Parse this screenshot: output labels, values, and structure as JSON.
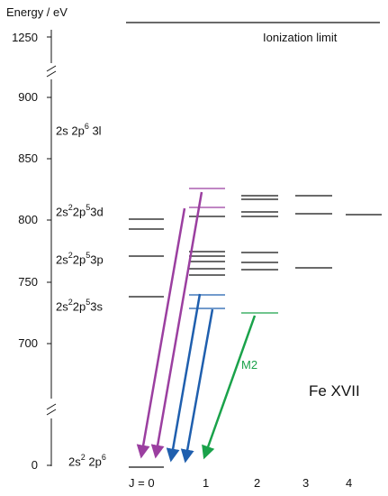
{
  "axis": {
    "title": "Energy / eV",
    "ticks": [
      "1250",
      "900",
      "850",
      "800",
      "750",
      "700",
      "0"
    ]
  },
  "ionization_label": "Ionization limit",
  "ion_label": "Fe XVII",
  "transition_label": "M2",
  "j_axis": {
    "prefix": "J = 0",
    "values": [
      "1",
      "2",
      "3",
      "4"
    ]
  },
  "configurations": [
    {
      "base": "2s 2p",
      "sup1": "6",
      "rest": " 3l"
    },
    {
      "base": "2s",
      "sup1": "2",
      "mid": "2p",
      "sup2": "5",
      "rest": "3d"
    },
    {
      "base": "2s",
      "sup1": "2",
      "mid": "2p",
      "sup2": "5",
      "rest": "3p"
    },
    {
      "base": "2s",
      "sup1": "2",
      "mid": "2p",
      "sup2": "5",
      "rest": "3s"
    },
    {
      "base": "2s",
      "sup1": "2",
      "mid": " 2p",
      "sup2": "6",
      "rest": ""
    }
  ],
  "colors": {
    "purple": "#9b3fa0",
    "blue": "#1f5fae",
    "green": "#1aa24a",
    "black": "#111111"
  }
}
